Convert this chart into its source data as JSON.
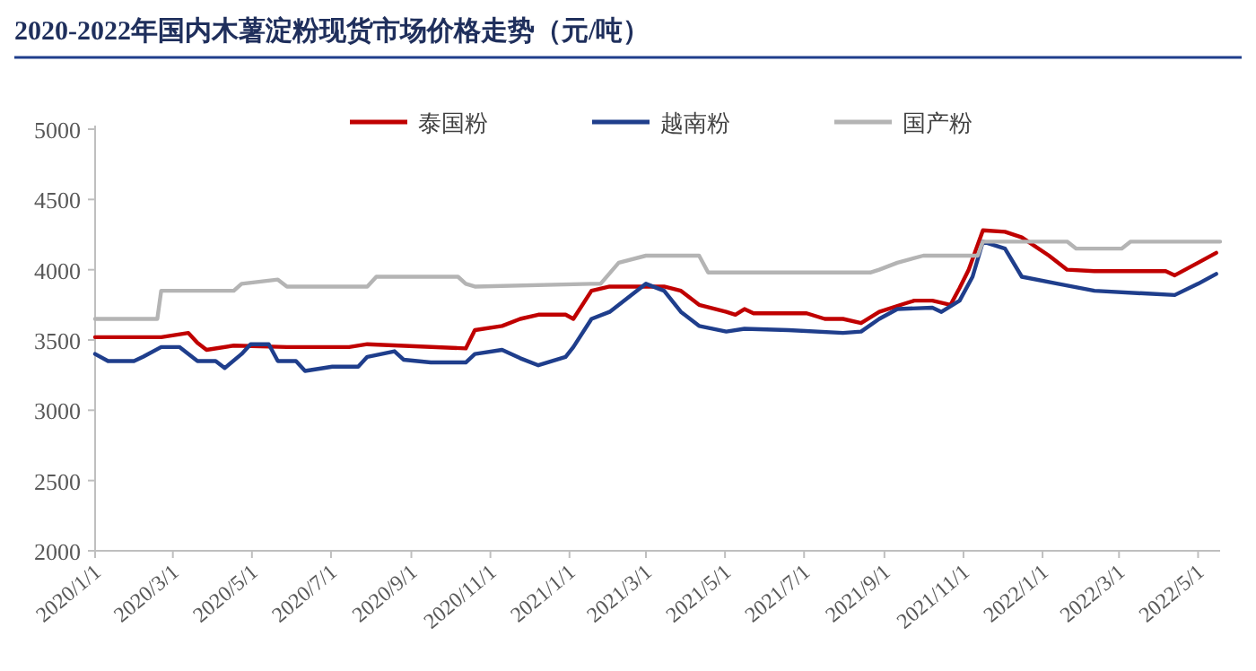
{
  "chart_data": {
    "type": "line",
    "title": "2020-2022年国内木薯淀粉现货市场价格走势（元/吨）",
    "xlim": [
      "2020-01-01",
      "2022-05-18"
    ],
    "xticks": [
      {
        "value": "2020-01-01",
        "label": "2020/1/1"
      },
      {
        "value": "2020-03-01",
        "label": "2020/3/1"
      },
      {
        "value": "2020-05-01",
        "label": "2020/5/1"
      },
      {
        "value": "2020-07-01",
        "label": "2020/7/1"
      },
      {
        "value": "2020-09-01",
        "label": "2020/9/1"
      },
      {
        "value": "2020-11-01",
        "label": "2020/11/1"
      },
      {
        "value": "2021-01-01",
        "label": "2021/1/1"
      },
      {
        "value": "2021-03-01",
        "label": "2021/3/1"
      },
      {
        "value": "2021-05-01",
        "label": "2021/5/1"
      },
      {
        "value": "2021-07-01",
        "label": "2021/7/1"
      },
      {
        "value": "2021-09-01",
        "label": "2021/9/1"
      },
      {
        "value": "2021-11-01",
        "label": "2021/11/1"
      },
      {
        "value": "2022-01-01",
        "label": "2022/1/1"
      },
      {
        "value": "2022-03-01",
        "label": "2022/3/1"
      },
      {
        "value": "2022-05-01",
        "label": "2022/5/1"
      }
    ],
    "ylim": [
      2000,
      5000
    ],
    "yticks": [
      2000,
      2500,
      3000,
      3500,
      4000,
      4500,
      5000
    ],
    "grid": false,
    "legend": "top",
    "marker": "none",
    "line_style": "solid",
    "series": [
      {
        "name": "泰国粉",
        "color": "#c00000",
        "x": [
          "2020-01-01",
          "2020-02-21",
          "2020-03-13",
          "2020-03-20",
          "2020-03-27",
          "2020-04-17",
          "2020-05-28",
          "2020-07-15",
          "2020-07-29",
          "2020-10-13",
          "2020-10-20",
          "2020-11-10",
          "2020-11-24",
          "2020-12-08",
          "2020-12-29",
          "2021-01-04",
          "2021-01-18",
          "2021-02-01",
          "2021-03-15",
          "2021-03-28",
          "2021-04-11",
          "2021-05-02",
          "2021-05-09",
          "2021-05-16",
          "2021-05-23",
          "2021-07-03",
          "2021-07-17",
          "2021-07-31",
          "2021-08-14",
          "2021-08-28",
          "2021-09-17",
          "2021-09-24",
          "2021-10-08",
          "2021-10-22",
          "2021-10-29",
          "2021-11-05",
          "2021-11-16",
          "2021-12-03",
          "2021-12-16",
          "2022-01-06",
          "2022-01-20",
          "2022-02-10",
          "2022-04-06",
          "2022-04-13",
          "2022-05-01",
          "2022-05-15"
        ],
        "values": [
          3520,
          3520,
          3550,
          3480,
          3430,
          3460,
          3450,
          3450,
          3470,
          3440,
          3570,
          3600,
          3650,
          3680,
          3680,
          3650,
          3850,
          3880,
          3880,
          3850,
          3750,
          3700,
          3680,
          3720,
          3690,
          3690,
          3650,
          3650,
          3620,
          3700,
          3760,
          3780,
          3780,
          3750,
          3870,
          4000,
          4280,
          4270,
          4230,
          4100,
          4000,
          3990,
          3990,
          3960,
          4050,
          4120
        ]
      },
      {
        "name": "越南粉",
        "color": "#1f3e8c",
        "x": [
          "2020-01-01",
          "2020-01-11",
          "2020-01-31",
          "2020-02-07",
          "2020-02-21",
          "2020-03-06",
          "2020-03-20",
          "2020-04-03",
          "2020-04-10",
          "2020-04-23",
          "2020-04-30",
          "2020-05-14",
          "2020-05-21",
          "2020-06-04",
          "2020-06-11",
          "2020-07-02",
          "2020-07-22",
          "2020-07-29",
          "2020-08-19",
          "2020-08-26",
          "2020-09-16",
          "2020-10-13",
          "2020-10-20",
          "2020-11-10",
          "2020-11-24",
          "2020-12-08",
          "2020-12-29",
          "2021-01-04",
          "2021-01-18",
          "2021-02-01",
          "2021-03-01",
          "2021-03-15",
          "2021-03-28",
          "2021-04-11",
          "2021-05-02",
          "2021-05-16",
          "2021-06-19",
          "2021-07-31",
          "2021-08-14",
          "2021-08-28",
          "2021-09-11",
          "2021-10-08",
          "2021-10-15",
          "2021-10-29",
          "2021-11-08",
          "2021-11-16",
          "2021-12-03",
          "2021-12-16",
          "2022-01-13",
          "2022-02-10",
          "2022-03-23",
          "2022-04-13",
          "2022-05-01",
          "2022-05-15"
        ],
        "values": [
          3400,
          3350,
          3350,
          3380,
          3450,
          3450,
          3350,
          3350,
          3300,
          3400,
          3470,
          3470,
          3350,
          3350,
          3280,
          3310,
          3310,
          3380,
          3420,
          3360,
          3340,
          3340,
          3400,
          3430,
          3370,
          3320,
          3380,
          3450,
          3650,
          3700,
          3900,
          3850,
          3700,
          3600,
          3560,
          3580,
          3570,
          3550,
          3560,
          3650,
          3720,
          3730,
          3700,
          3780,
          3950,
          4200,
          4150,
          3950,
          3900,
          3850,
          3830,
          3820,
          3900,
          3970
        ]
      },
      {
        "name": "国产粉",
        "color": "#b4b4b4",
        "x": [
          "2020-01-01",
          "2020-02-18",
          "2020-02-21",
          "2020-04-17",
          "2020-04-23",
          "2020-05-21",
          "2020-05-28",
          "2020-07-29",
          "2020-08-05",
          "2020-10-07",
          "2020-10-13",
          "2020-10-20",
          "2021-01-18",
          "2021-01-25",
          "2021-02-08",
          "2021-03-01",
          "2021-04-11",
          "2021-04-18",
          "2021-08-21",
          "2021-08-28",
          "2021-09-11",
          "2021-10-01",
          "2021-11-12",
          "2021-11-16",
          "2022-01-20",
          "2022-01-27",
          "2022-03-03",
          "2022-03-10",
          "2022-05-18"
        ],
        "values": [
          3650,
          3650,
          3850,
          3850,
          3900,
          3930,
          3880,
          3880,
          3950,
          3950,
          3900,
          3880,
          3900,
          3900,
          4050,
          4100,
          4100,
          3980,
          3980,
          4000,
          4050,
          4100,
          4100,
          4200,
          4200,
          4150,
          4150,
          4200,
          4200
        ]
      }
    ]
  }
}
